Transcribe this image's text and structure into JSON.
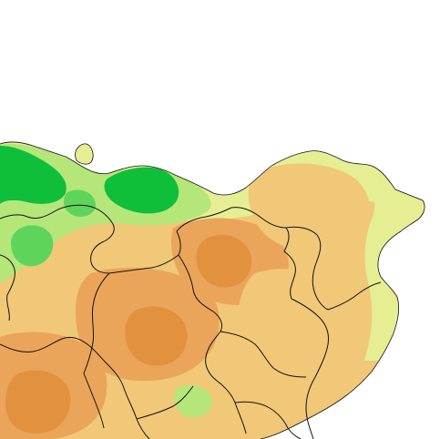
{
  "map": {
    "background_color": "#ffffff",
    "boundary_color": "#111111",
    "elevation_palette": {
      "high": "#0fbf3a",
      "upper": "#5fd45a",
      "mid_upper": "#b5e67a",
      "mid": "#e6ee94",
      "lower": "#f0c878",
      "low": "#eaa55a",
      "lowest": "#e2913f"
    }
  }
}
